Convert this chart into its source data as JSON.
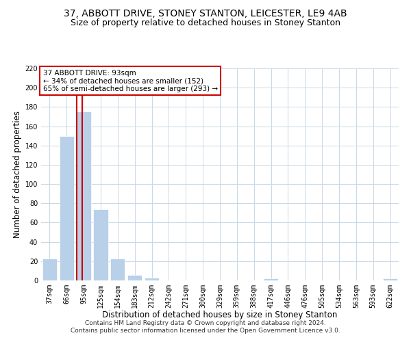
{
  "title": "37, ABBOTT DRIVE, STONEY STANTON, LEICESTER, LE9 4AB",
  "subtitle": "Size of property relative to detached houses in Stoney Stanton",
  "xlabel": "Distribution of detached houses by size in Stoney Stanton",
  "ylabel": "Number of detached properties",
  "footer_line1": "Contains HM Land Registry data © Crown copyright and database right 2024.",
  "footer_line2": "Contains public sector information licensed under the Open Government Licence v3.0.",
  "annotation_title": "37 ABBOTT DRIVE: 93sqm",
  "annotation_line1": "← 34% of detached houses are smaller (152)",
  "annotation_line2": "65% of semi-detached houses are larger (293) →",
  "bar_labels": [
    "37sqm",
    "66sqm",
    "95sqm",
    "125sqm",
    "154sqm",
    "183sqm",
    "212sqm",
    "242sqm",
    "271sqm",
    "300sqm",
    "329sqm",
    "359sqm",
    "388sqm",
    "417sqm",
    "446sqm",
    "476sqm",
    "505sqm",
    "534sqm",
    "563sqm",
    "593sqm",
    "622sqm"
  ],
  "bar_values": [
    23,
    150,
    175,
    74,
    23,
    6,
    3,
    0,
    0,
    0,
    0,
    0,
    0,
    2,
    0,
    0,
    0,
    0,
    0,
    0,
    2
  ],
  "highlight_bar_index": 2,
  "highlight_color": "#cc0000",
  "normal_bar_color": "#b8d0e8",
  "ylim": [
    0,
    220
  ],
  "yticks": [
    0,
    20,
    40,
    60,
    80,
    100,
    120,
    140,
    160,
    180,
    200,
    220
  ],
  "background_color": "#ffffff",
  "grid_color": "#c8d8e8",
  "title_fontsize": 10,
  "subtitle_fontsize": 9,
  "axis_label_fontsize": 8.5,
  "tick_fontsize": 7,
  "footer_fontsize": 6.5
}
